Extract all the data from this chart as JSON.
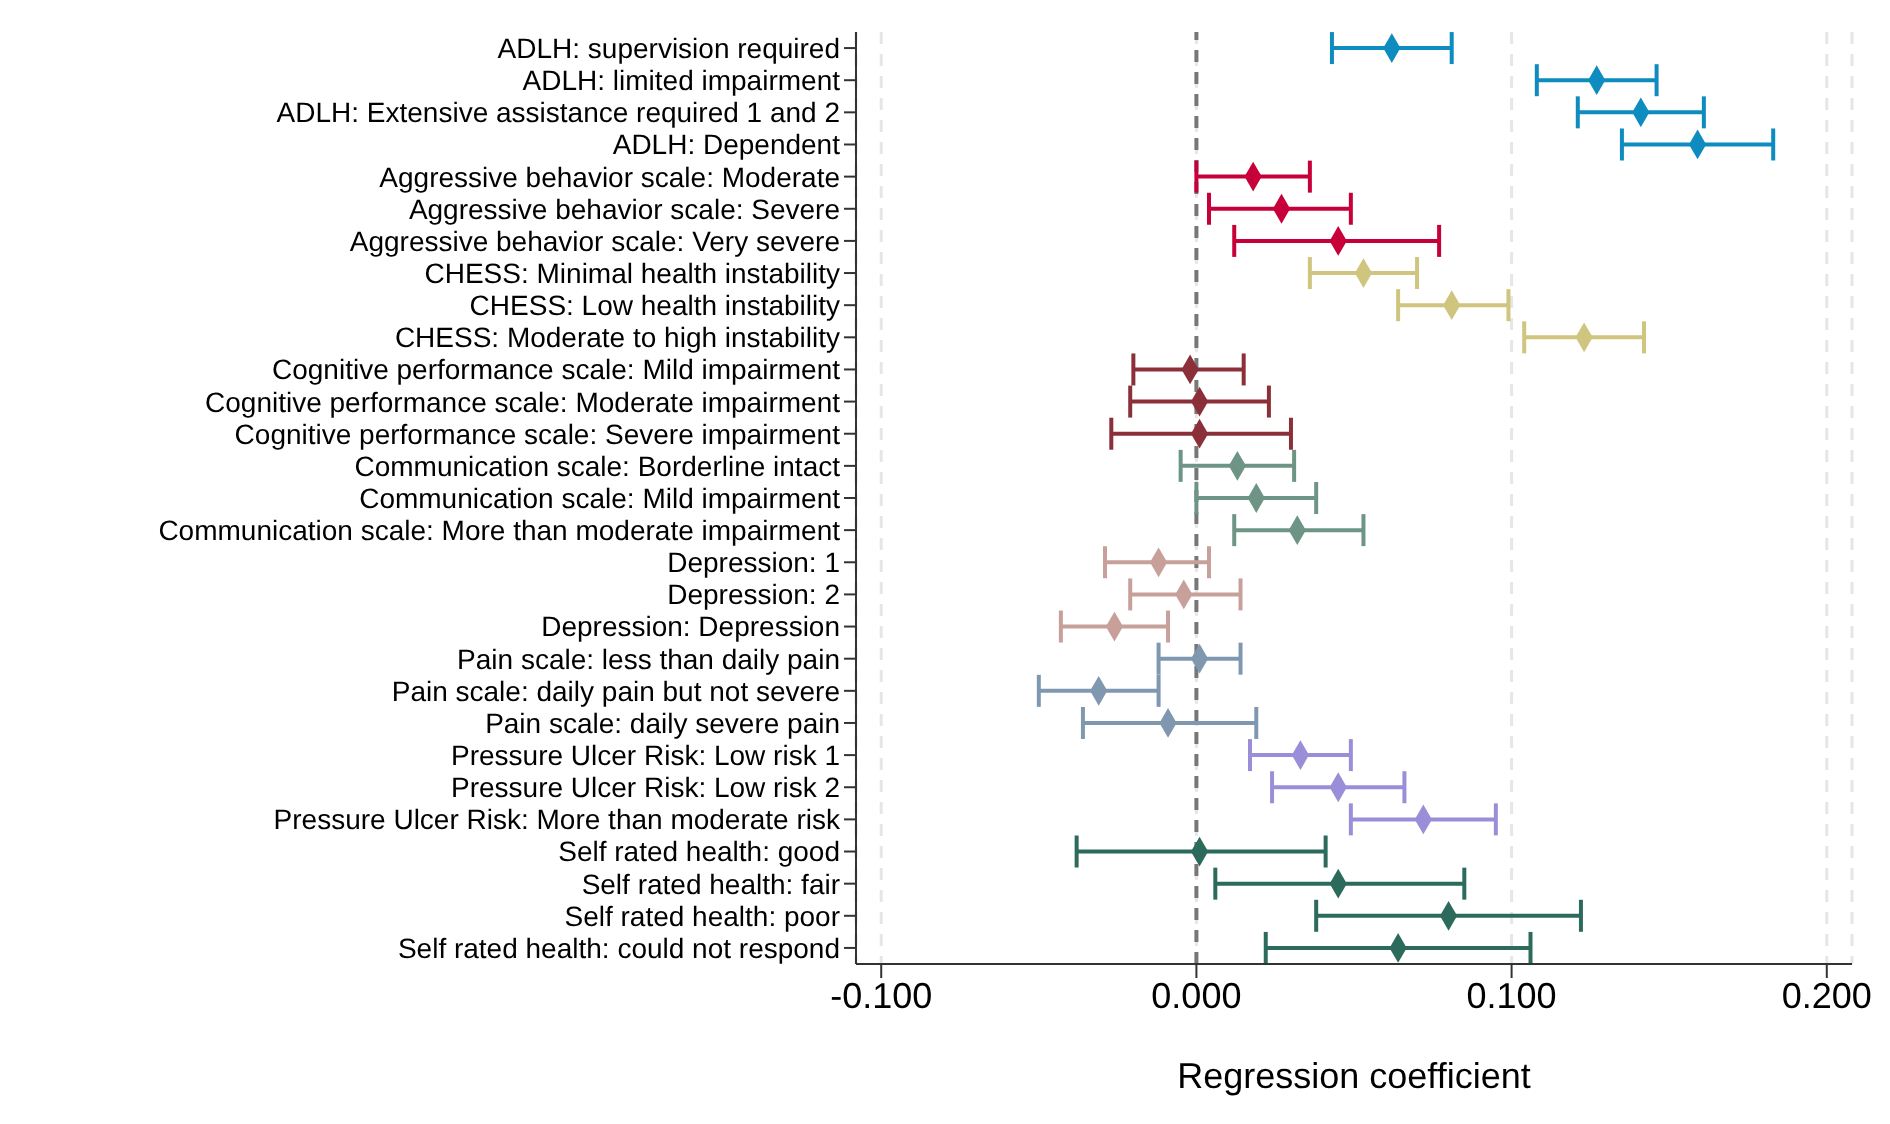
{
  "chart_data": {
    "type": "scatter",
    "orientation": "horizontal",
    "xlabel": "Regression coefficient",
    "categories": [
      "ADLH: supervision required",
      "ADLH: limited impairment",
      "ADLH: Extensive assistance required 1 and 2",
      "ADLH: Dependent",
      "Aggressive behavior scale: Moderate",
      "Aggressive behavior scale: Severe",
      "Aggressive behavior scale: Very severe",
      "CHESS: Minimal health instability",
      "CHESS: Low health instability",
      "CHESS: Moderate to high instability",
      "Cognitive performance scale: Mild impairment",
      "Cognitive performance scale: Moderate impairment",
      "Cognitive performance scale: Severe impairment",
      "Communication scale: Borderline intact",
      "Communication scale: Mild impairment",
      "Communication scale: More than moderate impairment",
      "Depression: 1",
      "Depression: 2",
      "Depression: Depression",
      "Pain scale: less than daily pain",
      "Pain scale: daily pain but not severe",
      "Pain scale: daily severe pain",
      "Pressure Ulcer Risk: Low risk 1",
      "Pressure Ulcer Risk: Low risk 2",
      "Pressure Ulcer Risk: More than moderate risk",
      "Self rated health: good",
      "Self rated health: fair",
      "Self rated health: poor",
      "Self rated health: could not respond"
    ],
    "values": [
      0.062,
      0.127,
      0.141,
      0.159,
      0.018,
      0.027,
      0.045,
      0.053,
      0.081,
      0.123,
      -0.002,
      0.001,
      0.001,
      0.013,
      0.019,
      0.032,
      -0.012,
      -0.004,
      -0.026,
      0.001,
      -0.031,
      -0.009,
      0.033,
      0.045,
      0.072,
      0.001,
      0.045,
      0.08,
      0.064
    ],
    "errors": [
      [
        0.043,
        0.081
      ],
      [
        0.108,
        0.146
      ],
      [
        0.121,
        0.161
      ],
      [
        0.135,
        0.183
      ],
      [
        0.0,
        0.036
      ],
      [
        0.004,
        0.049
      ],
      [
        0.012,
        0.077
      ],
      [
        0.036,
        0.07
      ],
      [
        0.064,
        0.099
      ],
      [
        0.104,
        0.142
      ],
      [
        -0.02,
        0.015
      ],
      [
        -0.021,
        0.023
      ],
      [
        -0.027,
        0.03
      ],
      [
        -0.005,
        0.031
      ],
      [
        0.0,
        0.038
      ],
      [
        0.012,
        0.053
      ],
      [
        -0.029,
        0.004
      ],
      [
        -0.021,
        0.014
      ],
      [
        -0.043,
        -0.009
      ],
      [
        -0.012,
        0.014
      ],
      [
        -0.05,
        -0.012
      ],
      [
        -0.036,
        0.019
      ],
      [
        0.017,
        0.049
      ],
      [
        0.024,
        0.066
      ],
      [
        0.049,
        0.095
      ],
      [
        -0.038,
        0.041
      ],
      [
        0.006,
        0.085
      ],
      [
        0.038,
        0.122
      ],
      [
        0.022,
        0.106
      ]
    ],
    "colors": [
      "#0e8bbf",
      "#0e8bbf",
      "#0e8bbf",
      "#0e8bbf",
      "#c8003a",
      "#c8003a",
      "#c8003a",
      "#cfc57f",
      "#cfc57f",
      "#cfc57f",
      "#8b3038",
      "#8b3038",
      "#8b3038",
      "#6d9484",
      "#6d9484",
      "#6d9484",
      "#c8a09a",
      "#c8a09a",
      "#c8a09a",
      "#7f98b0",
      "#7f98b0",
      "#7f98b0",
      "#9b8ed8",
      "#9b8ed8",
      "#9b8ed8",
      "#2c6b5c",
      "#2c6b5c",
      "#2c6b5c",
      "#2c6b5c"
    ],
    "xlim": [
      -0.108,
      0.208
    ],
    "xticks": [
      {
        "value": -0.1,
        "label": "-0.100"
      },
      {
        "value": 0,
        "label": "0.000"
      },
      {
        "value": 0.1,
        "label": "0.100"
      },
      {
        "value": 0.2,
        "label": "0.200"
      }
    ],
    "ref_lines": [
      {
        "axis": "x",
        "value": 0,
        "color": "#777777",
        "line_style": "dashed"
      }
    ],
    "grid": "x",
    "marker": "diamond"
  }
}
